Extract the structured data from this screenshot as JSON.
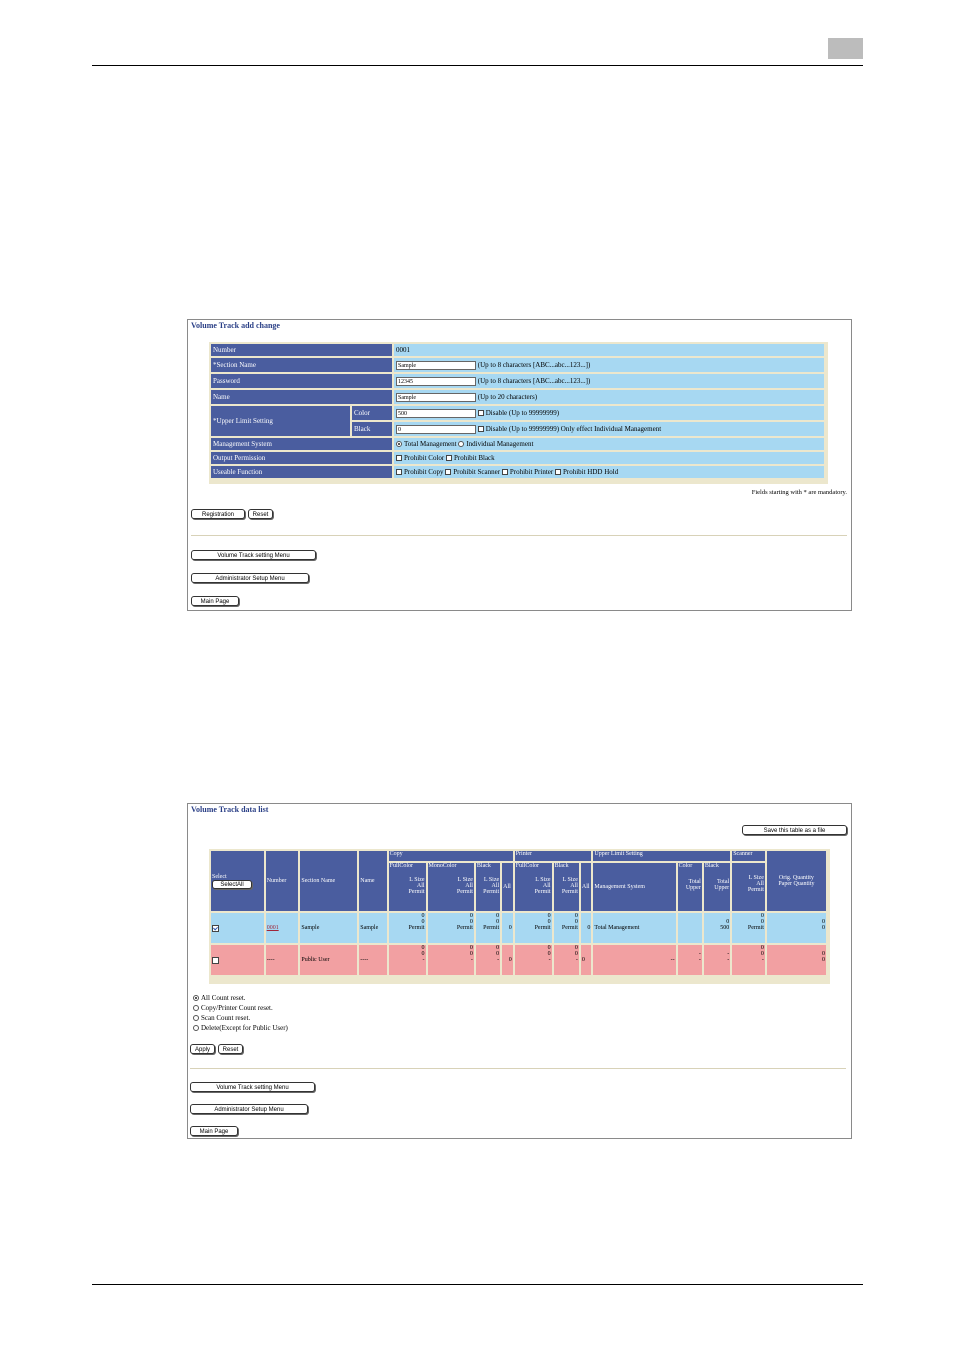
{
  "form": {
    "title": "Volume Track add change",
    "rows": {
      "number": {
        "label": "Number",
        "value": "0001"
      },
      "section": {
        "label": "*Section Name",
        "value": "Sample",
        "hint": "(Up to 8 characters [ABC...abc...123...])"
      },
      "password": {
        "label": "Password",
        "value": "12345",
        "hint": "(Up to 8 characters [ABC...abc...123...])"
      },
      "name": {
        "label": "Name",
        "value": "Sample",
        "hint": "(Up to 20 characters)"
      },
      "upper": {
        "label": "*Upper Limit Setting",
        "color": {
          "label": "Color",
          "value": "500",
          "disable": "Disable (Up to 99999999)"
        },
        "black": {
          "label": "Black",
          "value": "0",
          "disable": "Disable (Up to 99999999) Only effect Individual Management"
        }
      },
      "mgmt": {
        "label": "Management System",
        "opt1": "Total Management",
        "opt2": "Individual Management"
      },
      "output": {
        "label": "Output Permission",
        "opt1": "Prohibit Color",
        "opt2": "Prohibit Black"
      },
      "useable": {
        "label": "Useable Function",
        "opt1": "Prohibit Copy",
        "opt2": "Prohibit Scanner",
        "opt3": "Prohibit Printer",
        "opt4": "Prohibit HDD Hold"
      }
    },
    "mandatory": "Fields starting with * are mandatory.",
    "buttons": {
      "registration": "Registration",
      "reset": "Reset",
      "vt_menu": "Volume Track setting Menu",
      "admin_menu": "Administrator Setup Menu",
      "main_page": "Main Page"
    }
  },
  "list": {
    "title": "Volume Track data list",
    "save_button": "Save this table as a file",
    "headers": {
      "select": "Select",
      "select_all": "SelectAll",
      "number": "Number",
      "section": "Section Name",
      "name": "Name",
      "copy": "Copy",
      "printer": "Printer",
      "upper": "Upper Limit Setting",
      "scanner": "Scanner",
      "fullcolor": "FullColor",
      "monocolor": "MonoColor",
      "black": "Black",
      "all": "All",
      "lsize": "L Size",
      "all2": "All",
      "permit": "Permit",
      "mgmt": "Management System",
      "color": "Color",
      "total": "Total",
      "upper2": "Upper",
      "orig": "Orig. Quantity",
      "paper": "Paper Quantity"
    },
    "row1": {
      "number": "0001",
      "section": "Sample",
      "name": "Sample",
      "copy_fc": [
        "0",
        "0",
        "Permit"
      ],
      "copy_mc": [
        "0",
        "0",
        "Permit"
      ],
      "copy_bk": [
        "0",
        "0",
        "Permit"
      ],
      "copy_all": "0",
      "prn_fc": [
        "0",
        "0",
        "Permit"
      ],
      "prn_bk": [
        "0",
        "0",
        "Permit"
      ],
      "prn_all": "0",
      "mgmt": "Total Management",
      "upper_black": [
        "0",
        "500"
      ],
      "scan": [
        "0",
        "0",
        "Permit"
      ],
      "orig": "0",
      "paper": "0"
    },
    "row2": {
      "number": "----",
      "section": "Public User",
      "name": "----",
      "copy_fc": [
        "0",
        "0",
        "-"
      ],
      "copy_mc": [
        "0",
        "0",
        "-"
      ],
      "copy_bk": [
        "0",
        "0",
        "-"
      ],
      "copy_all": "0",
      "prn_fc": [
        "0",
        "0",
        "-"
      ],
      "prn_bk": [
        "0",
        "0",
        "-"
      ],
      "prn_all": "0",
      "mgmt": "--",
      "dash": "-",
      "scan": [
        "0",
        "0",
        "-"
      ],
      "orig": "0",
      "paper": "0"
    },
    "options": [
      "All Count reset.",
      "Copy/Printer Count reset.",
      "Scan Count reset.",
      "Delete(Except for Public User)"
    ],
    "buttons": {
      "apply": "Apply",
      "reset": "Reset",
      "vt_menu": "Volume Track setting Menu",
      "admin_menu": "Administrator Setup Menu",
      "main_page": "Main Page"
    }
  }
}
